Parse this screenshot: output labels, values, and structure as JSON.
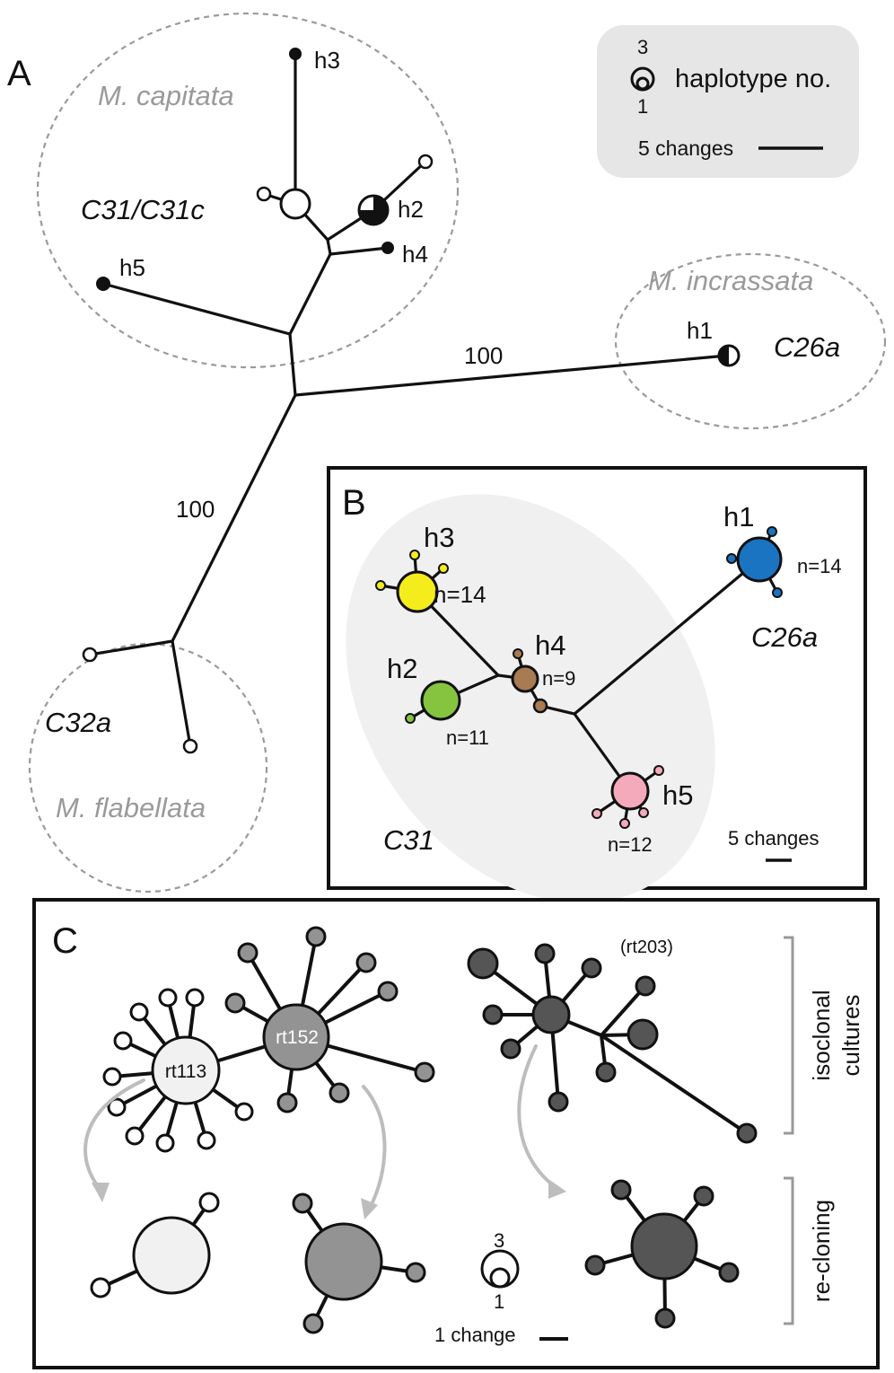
{
  "colors": {
    "h1": "#1a74c2",
    "h2": "#86c440",
    "h3": "#f5ec1b",
    "h4": "#a87b52",
    "h5": "#f4aabb",
    "rt113": "#f1f1f1",
    "rt152": "#939393",
    "rt203": "#555555",
    "arrow": "#bdbdbd",
    "clade_bg": "#f0f0f0",
    "legend_bg": "#e6e6e6"
  },
  "panel_a": {
    "label": "A",
    "species": {
      "capitata": "M. capitata",
      "incrassata": "M. incrassata",
      "flabellata": "M. flabellata"
    },
    "clades": {
      "c31": "C31/C31c",
      "c26a": "C26a",
      "c32a": "C32a"
    },
    "haplotypes": {
      "h1": "h1",
      "h2": "h2",
      "h3": "h3",
      "h4": "h4",
      "h5": "h5"
    },
    "bootstrap_top": "100",
    "bootstrap_left": "100",
    "legend": {
      "num_top": "3",
      "num_bottom": "1",
      "caption": "haplotype no.",
      "scale": "5 changes"
    }
  },
  "panel_b": {
    "label": "B",
    "clade": "C31",
    "clade_c26a": "C26a",
    "scale": "5 changes",
    "nodes": [
      {
        "id": "h1",
        "label": "h1",
        "n": "n=14"
      },
      {
        "id": "h2",
        "label": "h2",
        "n": "n=11"
      },
      {
        "id": "h3",
        "label": "h3",
        "n": "n=14"
      },
      {
        "id": "h4",
        "label": "h4",
        "n": "n=9"
      },
      {
        "id": "h5",
        "label": "h5",
        "n": "n=12"
      }
    ]
  },
  "panel_c": {
    "label": "C",
    "strain_rt113": "rt113",
    "strain_rt152": "rt152",
    "strain_rt203": "(rt203)",
    "bracket_top": "isoclonal cultures",
    "bracket_bottom": "re-cloning",
    "legend_num_top": "3",
    "legend_num_bottom": "1",
    "scale": "1 change"
  }
}
